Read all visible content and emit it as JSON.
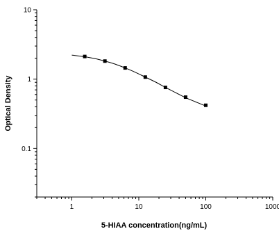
{
  "chart_data": {
    "type": "line",
    "title": "",
    "xlabel": "5-HIAA concentration(ng/mL)",
    "ylabel": "Optical Density",
    "x_scale": "log",
    "y_scale": "log",
    "xlim": [
      0.3,
      1000
    ],
    "ylim": [
      0.02,
      10
    ],
    "x_ticks": [
      1,
      10,
      100,
      1000
    ],
    "x_tick_labels": [
      "1",
      "10",
      "100",
      "1000"
    ],
    "y_ticks": [
      0.1,
      1,
      10
    ],
    "y_tick_labels": [
      "0.1",
      "1",
      "10"
    ],
    "grid": false,
    "legend": "none",
    "series": [
      {
        "x": [
          1.56,
          3.12,
          6.25,
          12.5,
          25,
          50,
          100
        ],
        "y": [
          2.12,
          1.82,
          1.45,
          1.07,
          0.76,
          0.55,
          0.42
        ],
        "marker": "square",
        "color": "#000000"
      }
    ],
    "fit_curve": {
      "x": [
        1,
        1.56,
        2.2,
        3.12,
        4.4,
        6.25,
        8.8,
        12.5,
        17.7,
        25,
        35.4,
        50,
        70.7,
        100
      ],
      "y": [
        2.22,
        2.1,
        1.98,
        1.82,
        1.65,
        1.45,
        1.26,
        1.07,
        0.91,
        0.76,
        0.64,
        0.54,
        0.47,
        0.41
      ],
      "color": "#000000"
    }
  }
}
